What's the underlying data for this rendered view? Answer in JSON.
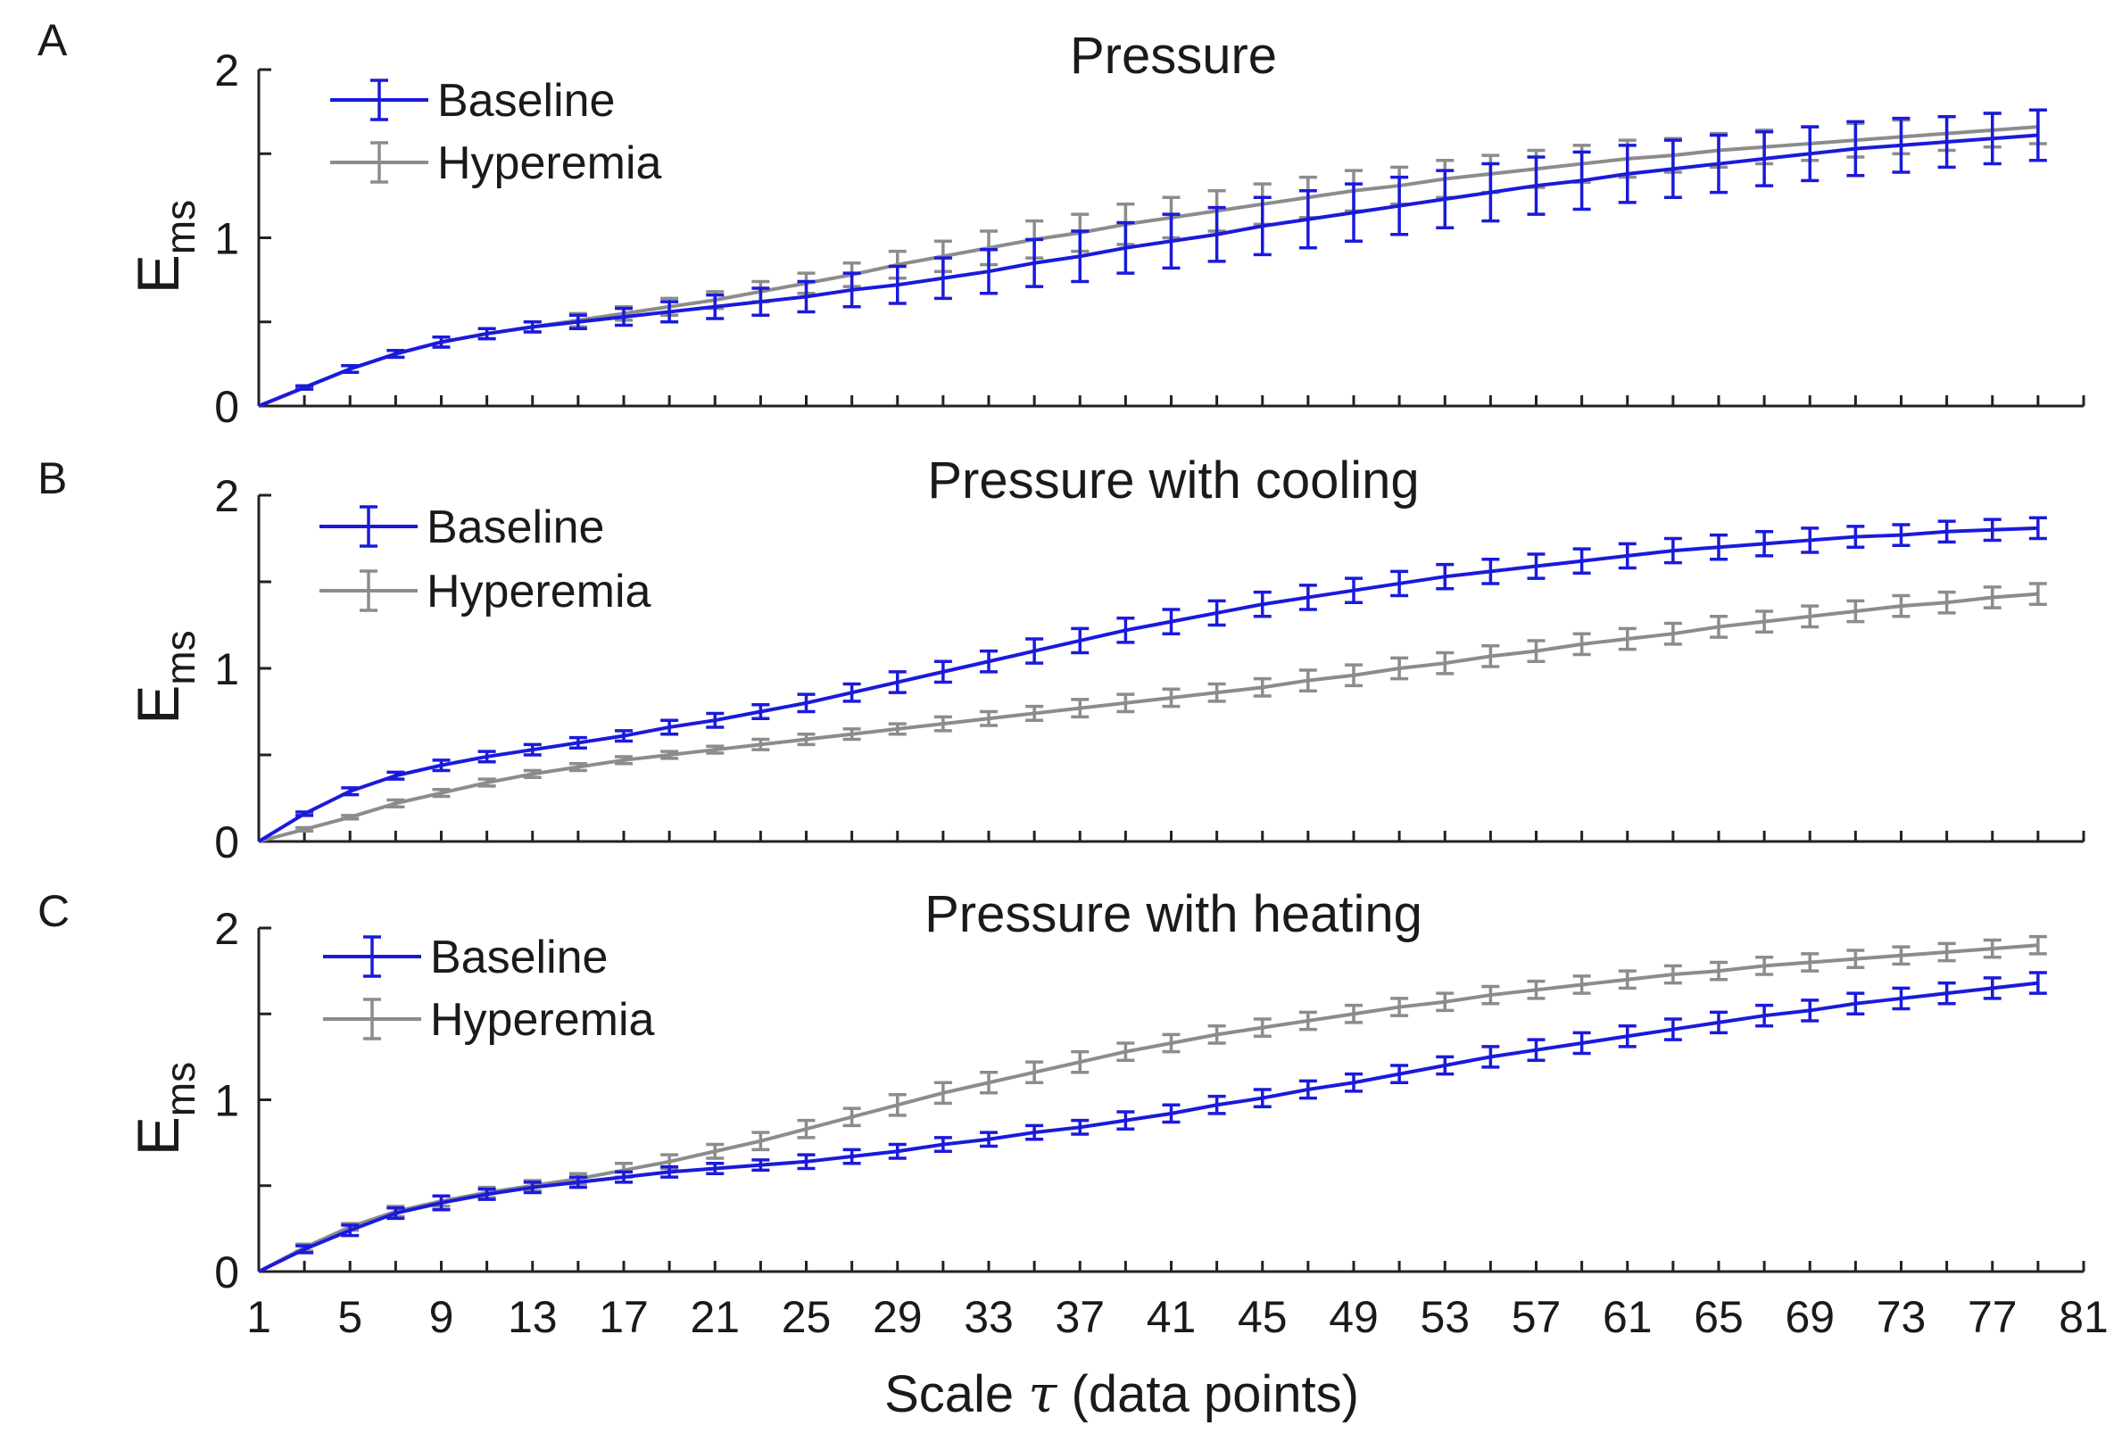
{
  "chart_data": {
    "type": "line",
    "x_axis": {
      "label": "Scale τ (data points)",
      "label_prefix": "Scale ",
      "label_symbol": "τ",
      "label_suffix": " (data points)",
      "range": [
        1,
        81
      ],
      "ticks": [
        1,
        5,
        9,
        13,
        17,
        21,
        25,
        29,
        33,
        37,
        41,
        45,
        49,
        53,
        57,
        61,
        65,
        69,
        73,
        77,
        81
      ]
    },
    "colors": {
      "Baseline": "#1a1adc",
      "Hyperemia": "#8c8c8c",
      "axis": "#222222"
    },
    "panels": [
      {
        "letter": "A",
        "title": "Pressure",
        "ylabel_main": "E",
        "ylabel_sub": "ms",
        "ylim": [
          0,
          2
        ],
        "yticks": [
          0,
          1,
          2
        ],
        "legend": [
          "Baseline",
          "Hyperemia"
        ],
        "series": [
          {
            "name": "Baseline",
            "x": [
              1,
              3,
              5,
              7,
              9,
              11,
              13,
              15,
              17,
              19,
              21,
              23,
              25,
              27,
              29,
              31,
              33,
              35,
              37,
              39,
              41,
              43,
              45,
              47,
              49,
              51,
              53,
              55,
              57,
              59,
              61,
              63,
              65,
              67,
              69,
              71,
              73,
              75,
              77,
              79
            ],
            "y": [
              0,
              0.11,
              0.22,
              0.31,
              0.38,
              0.43,
              0.47,
              0.5,
              0.53,
              0.56,
              0.59,
              0.62,
              0.65,
              0.69,
              0.72,
              0.76,
              0.8,
              0.85,
              0.89,
              0.94,
              0.98,
              1.02,
              1.07,
              1.11,
              1.15,
              1.19,
              1.23,
              1.27,
              1.31,
              1.34,
              1.38,
              1.41,
              1.44,
              1.47,
              1.5,
              1.53,
              1.55,
              1.57,
              1.59,
              1.61
            ],
            "err": [
              0,
              0.01,
              0.02,
              0.02,
              0.03,
              0.03,
              0.03,
              0.04,
              0.05,
              0.06,
              0.07,
              0.08,
              0.09,
              0.1,
              0.11,
              0.12,
              0.13,
              0.14,
              0.15,
              0.15,
              0.16,
              0.16,
              0.17,
              0.17,
              0.17,
              0.17,
              0.17,
              0.17,
              0.17,
              0.17,
              0.17,
              0.17,
              0.17,
              0.16,
              0.16,
              0.16,
              0.16,
              0.15,
              0.15,
              0.15
            ]
          },
          {
            "name": "Hyperemia",
            "x": [
              1,
              3,
              5,
              7,
              9,
              11,
              13,
              15,
              17,
              19,
              21,
              23,
              25,
              27,
              29,
              31,
              33,
              35,
              37,
              39,
              41,
              43,
              45,
              47,
              49,
              51,
              53,
              55,
              57,
              59,
              61,
              63,
              65,
              67,
              69,
              71,
              73,
              75,
              77,
              79
            ],
            "y": [
              0,
              0.11,
              0.22,
              0.31,
              0.38,
              0.43,
              0.47,
              0.51,
              0.55,
              0.59,
              0.63,
              0.68,
              0.73,
              0.78,
              0.84,
              0.89,
              0.94,
              0.99,
              1.03,
              1.08,
              1.12,
              1.16,
              1.2,
              1.24,
              1.28,
              1.31,
              1.35,
              1.38,
              1.41,
              1.44,
              1.47,
              1.49,
              1.52,
              1.54,
              1.56,
              1.58,
              1.6,
              1.62,
              1.64,
              1.66
            ],
            "err": [
              0,
              0.01,
              0.02,
              0.02,
              0.03,
              0.03,
              0.03,
              0.04,
              0.04,
              0.05,
              0.05,
              0.06,
              0.06,
              0.07,
              0.08,
              0.09,
              0.1,
              0.11,
              0.11,
              0.12,
              0.12,
              0.12,
              0.12,
              0.12,
              0.12,
              0.11,
              0.11,
              0.11,
              0.11,
              0.11,
              0.11,
              0.1,
              0.1,
              0.1,
              0.1,
              0.1,
              0.1,
              0.1,
              0.1,
              0.1
            ]
          }
        ]
      },
      {
        "letter": "B",
        "title": "Pressure with cooling",
        "ylabel_main": "E",
        "ylabel_sub": "ms",
        "ylim": [
          0,
          2
        ],
        "yticks": [
          0,
          1,
          2
        ],
        "legend": [
          "Baseline",
          "Hyperemia"
        ],
        "series": [
          {
            "name": "Baseline",
            "x": [
              1,
              3,
              5,
              7,
              9,
              11,
              13,
              15,
              17,
              19,
              21,
              23,
              25,
              27,
              29,
              31,
              33,
              35,
              37,
              39,
              41,
              43,
              45,
              47,
              49,
              51,
              53,
              55,
              57,
              59,
              61,
              63,
              65,
              67,
              69,
              71,
              73,
              75,
              77,
              79
            ],
            "y": [
              0,
              0.16,
              0.29,
              0.38,
              0.44,
              0.49,
              0.53,
              0.57,
              0.61,
              0.66,
              0.7,
              0.75,
              0.8,
              0.86,
              0.92,
              0.98,
              1.04,
              1.1,
              1.16,
              1.22,
              1.27,
              1.32,
              1.37,
              1.41,
              1.45,
              1.49,
              1.53,
              1.56,
              1.59,
              1.62,
              1.65,
              1.68,
              1.7,
              1.72,
              1.74,
              1.76,
              1.77,
              1.79,
              1.8,
              1.81
            ],
            "err": [
              0,
              0.01,
              0.02,
              0.02,
              0.03,
              0.03,
              0.03,
              0.03,
              0.03,
              0.04,
              0.04,
              0.04,
              0.05,
              0.05,
              0.06,
              0.06,
              0.06,
              0.07,
              0.07,
              0.07,
              0.07,
              0.07,
              0.07,
              0.07,
              0.07,
              0.07,
              0.07,
              0.07,
              0.07,
              0.07,
              0.07,
              0.07,
              0.07,
              0.07,
              0.07,
              0.06,
              0.06,
              0.06,
              0.06,
              0.06
            ]
          },
          {
            "name": "Hyperemia",
            "x": [
              1,
              3,
              5,
              7,
              9,
              11,
              13,
              15,
              17,
              19,
              21,
              23,
              25,
              27,
              29,
              31,
              33,
              35,
              37,
              39,
              41,
              43,
              45,
              47,
              49,
              51,
              53,
              55,
              57,
              59,
              61,
              63,
              65,
              67,
              69,
              71,
              73,
              75,
              77,
              79
            ],
            "y": [
              0,
              0.07,
              0.14,
              0.22,
              0.28,
              0.34,
              0.39,
              0.43,
              0.47,
              0.5,
              0.53,
              0.56,
              0.59,
              0.62,
              0.65,
              0.68,
              0.71,
              0.74,
              0.77,
              0.8,
              0.83,
              0.86,
              0.89,
              0.93,
              0.96,
              1.0,
              1.03,
              1.07,
              1.1,
              1.14,
              1.17,
              1.2,
              1.24,
              1.27,
              1.3,
              1.33,
              1.36,
              1.38,
              1.41,
              1.43
            ],
            "err": [
              0,
              0.01,
              0.01,
              0.02,
              0.02,
              0.02,
              0.02,
              0.02,
              0.02,
              0.02,
              0.02,
              0.03,
              0.03,
              0.03,
              0.03,
              0.04,
              0.04,
              0.04,
              0.05,
              0.05,
              0.05,
              0.05,
              0.05,
              0.06,
              0.06,
              0.06,
              0.06,
              0.06,
              0.06,
              0.06,
              0.06,
              0.06,
              0.06,
              0.06,
              0.06,
              0.06,
              0.06,
              0.06,
              0.06,
              0.06
            ]
          }
        ]
      },
      {
        "letter": "C",
        "title": "Pressure with heating",
        "ylabel_main": "E",
        "ylabel_sub": "ms",
        "ylim": [
          0,
          2
        ],
        "yticks": [
          0,
          1,
          2
        ],
        "legend": [
          "Baseline",
          "Hyperemia"
        ],
        "series": [
          {
            "name": "Baseline",
            "x": [
              1,
              3,
              5,
              7,
              9,
              11,
              13,
              15,
              17,
              19,
              21,
              23,
              25,
              27,
              29,
              31,
              33,
              35,
              37,
              39,
              41,
              43,
              45,
              47,
              49,
              51,
              53,
              55,
              57,
              59,
              61,
              63,
              65,
              67,
              69,
              71,
              73,
              75,
              77,
              79
            ],
            "y": [
              0,
              0.13,
              0.24,
              0.34,
              0.4,
              0.45,
              0.49,
              0.52,
              0.55,
              0.58,
              0.6,
              0.62,
              0.64,
              0.67,
              0.7,
              0.74,
              0.77,
              0.81,
              0.84,
              0.88,
              0.92,
              0.97,
              1.01,
              1.06,
              1.1,
              1.15,
              1.2,
              1.25,
              1.29,
              1.33,
              1.37,
              1.41,
              1.45,
              1.49,
              1.52,
              1.56,
              1.59,
              1.62,
              1.65,
              1.68
            ],
            "err": [
              0,
              0.02,
              0.03,
              0.03,
              0.04,
              0.03,
              0.03,
              0.03,
              0.03,
              0.03,
              0.03,
              0.03,
              0.04,
              0.04,
              0.04,
              0.04,
              0.04,
              0.04,
              0.04,
              0.05,
              0.05,
              0.05,
              0.05,
              0.05,
              0.05,
              0.05,
              0.05,
              0.06,
              0.06,
              0.06,
              0.06,
              0.06,
              0.06,
              0.06,
              0.06,
              0.06,
              0.06,
              0.06,
              0.06,
              0.06
            ]
          },
          {
            "name": "Hyperemia",
            "x": [
              1,
              3,
              5,
              7,
              9,
              11,
              13,
              15,
              17,
              19,
              21,
              23,
              25,
              27,
              29,
              31,
              33,
              35,
              37,
              39,
              41,
              43,
              45,
              47,
              49,
              51,
              53,
              55,
              57,
              59,
              61,
              63,
              65,
              67,
              69,
              71,
              73,
              75,
              77,
              79
            ],
            "y": [
              0,
              0.14,
              0.26,
              0.35,
              0.41,
              0.46,
              0.5,
              0.54,
              0.59,
              0.64,
              0.7,
              0.76,
              0.83,
              0.9,
              0.97,
              1.04,
              1.1,
              1.16,
              1.22,
              1.28,
              1.33,
              1.38,
              1.42,
              1.46,
              1.5,
              1.54,
              1.57,
              1.61,
              1.64,
              1.67,
              1.7,
              1.73,
              1.75,
              1.78,
              1.8,
              1.82,
              1.84,
              1.86,
              1.88,
              1.9
            ],
            "err": [
              0,
              0.02,
              0.02,
              0.03,
              0.03,
              0.03,
              0.03,
              0.03,
              0.04,
              0.04,
              0.04,
              0.05,
              0.05,
              0.05,
              0.06,
              0.06,
              0.06,
              0.06,
              0.06,
              0.05,
              0.05,
              0.05,
              0.05,
              0.05,
              0.05,
              0.05,
              0.05,
              0.05,
              0.05,
              0.05,
              0.05,
              0.05,
              0.05,
              0.05,
              0.05,
              0.05,
              0.05,
              0.05,
              0.05,
              0.05
            ]
          }
        ]
      }
    ]
  }
}
